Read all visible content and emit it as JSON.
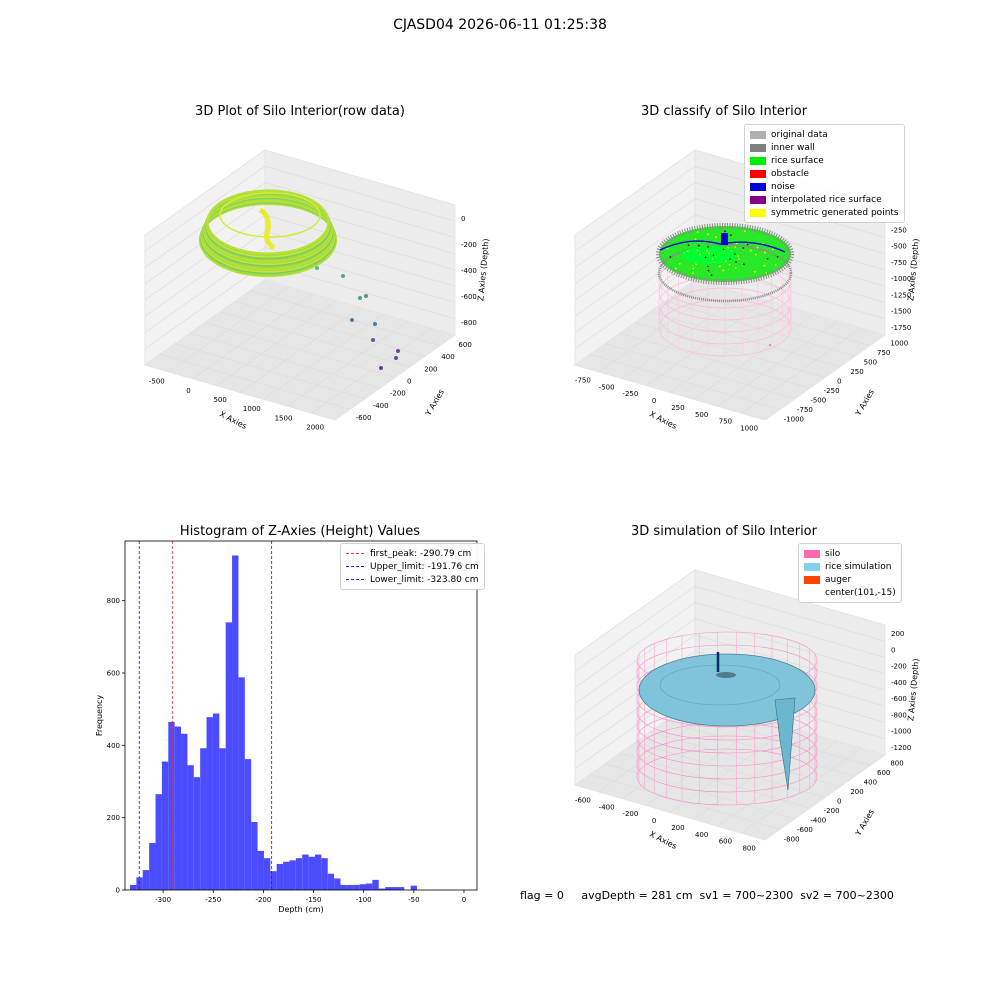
{
  "figure": {
    "title": "CJASD04 2026-06-11 01:25:38",
    "footer": "flag = 0     avgDepth = 281 cm  sv1 = 700~2300  sv2 = 700~2300"
  },
  "colors": {
    "hist_bar": "#4b4bff",
    "first_peak": "#e03030",
    "limits": "#2020cc",
    "pane": "#f2f2f2",
    "grid": "#dcdcdc"
  },
  "chart_data": [
    {
      "id": "raw",
      "type": "scatter",
      "title": "3D Plot of Silo Interior(row data)",
      "xlabel": "X Axies",
      "ylabel": "Y Axies",
      "zlabel": "Z Axies (Depth)",
      "x_ticks": [
        "-500",
        "0",
        "500",
        "1000",
        "1500",
        "2000"
      ],
      "y_ticks": [
        "-600",
        "-400",
        "-200",
        "0",
        "200",
        "400",
        "600"
      ],
      "z_ticks": [
        "-800",
        "-600",
        "-400",
        "-200",
        "0"
      ],
      "grid": true
    },
    {
      "id": "classify",
      "type": "scatter",
      "title": "3D classify of Silo Interior",
      "xlabel": "X Axies",
      "ylabel": "Y Axies",
      "zlabel": "Z Axies (Depth)",
      "x_ticks": [
        "-750",
        "-500",
        "-250",
        "0",
        "250",
        "500",
        "750",
        "1000"
      ],
      "y_ticks": [
        "-1000",
        "-750",
        "-500",
        "-250",
        "0",
        "250",
        "500",
        "750",
        "1000"
      ],
      "z_ticks": [
        "-1750",
        "-1500",
        "-1250",
        "-1000",
        "-750",
        "-500",
        "-250",
        "0"
      ],
      "z_ticks_partial": [
        "250",
        "0"
      ],
      "legend_position": "upper-right",
      "legend": [
        {
          "label": "original data",
          "color": "#b0b0b0"
        },
        {
          "label": "inner wall",
          "color": "#808080"
        },
        {
          "label": "rice surface",
          "color": "#00ee00"
        },
        {
          "label": "obstacle",
          "color": "#ff0000"
        },
        {
          "label": "noise",
          "color": "#0000dd"
        },
        {
          "label": "interpolated rice surface",
          "color": "#880088"
        },
        {
          "label": "symmetric generated points",
          "color": "#ffff00"
        }
      ],
      "grid": true
    },
    {
      "id": "histogram",
      "type": "bar",
      "title": "Histogram of Z-Axies (Height) Values",
      "xlabel": "Depth (cm)",
      "ylabel": "Frequency",
      "xlim": [
        -338,
        13
      ],
      "ylim": [
        0,
        965
      ],
      "x_ticks": [
        -300,
        -250,
        -200,
        -150,
        -100,
        -50,
        0
      ],
      "y_ticks": [
        0,
        200,
        400,
        600,
        800
      ],
      "bin_width": 6.36,
      "bins_start": -333.0,
      "values": [
        14,
        35,
        55,
        130,
        265,
        355,
        465,
        452,
        432,
        345,
        312,
        392,
        478,
        488,
        392,
        740,
        925,
        588,
        362,
        188,
        108,
        88,
        52,
        72,
        78,
        82,
        88,
        98,
        92,
        98,
        88,
        45,
        32,
        14,
        14,
        14,
        16,
        18,
        28,
        4,
        8,
        8,
        8,
        0,
        12
      ],
      "lines": [
        {
          "label": "first_peak: -290.79 cm",
          "x": -290.79,
          "color": "#e03030"
        },
        {
          "label": "Upper_limit: -191.76 cm",
          "x": -191.76,
          "color": "#2020cc"
        },
        {
          "label": "Lower_limit: -323.80 cm",
          "x": -323.8,
          "color": "#2020cc"
        }
      ],
      "legend_position": "upper-right"
    },
    {
      "id": "simulation",
      "type": "area",
      "title": "3D simulation of Silo Interior",
      "xlabel": "X Axies",
      "ylabel": "Y Axies",
      "zlabel": "Z Axies (Depth)",
      "x_ticks": [
        "-600",
        "-400",
        "-200",
        "0",
        "200",
        "400",
        "600",
        "800"
      ],
      "y_ticks": [
        "-800",
        "-600",
        "-400",
        "-200",
        "0",
        "200",
        "400",
        "600",
        "800"
      ],
      "z_ticks": [
        "-1200",
        "-1000",
        "-800",
        "-600",
        "-400",
        "-200",
        "0",
        "200"
      ],
      "legend_position": "upper-right",
      "legend": [
        {
          "label": "silo",
          "color": "#ff69b4"
        },
        {
          "label": "rice simulation",
          "color": "#87ceeb"
        },
        {
          "label": "auger",
          "color": "#ff4500"
        },
        {
          "label": "center(101,-15)",
          "color": "none"
        }
      ],
      "grid": true
    }
  ]
}
